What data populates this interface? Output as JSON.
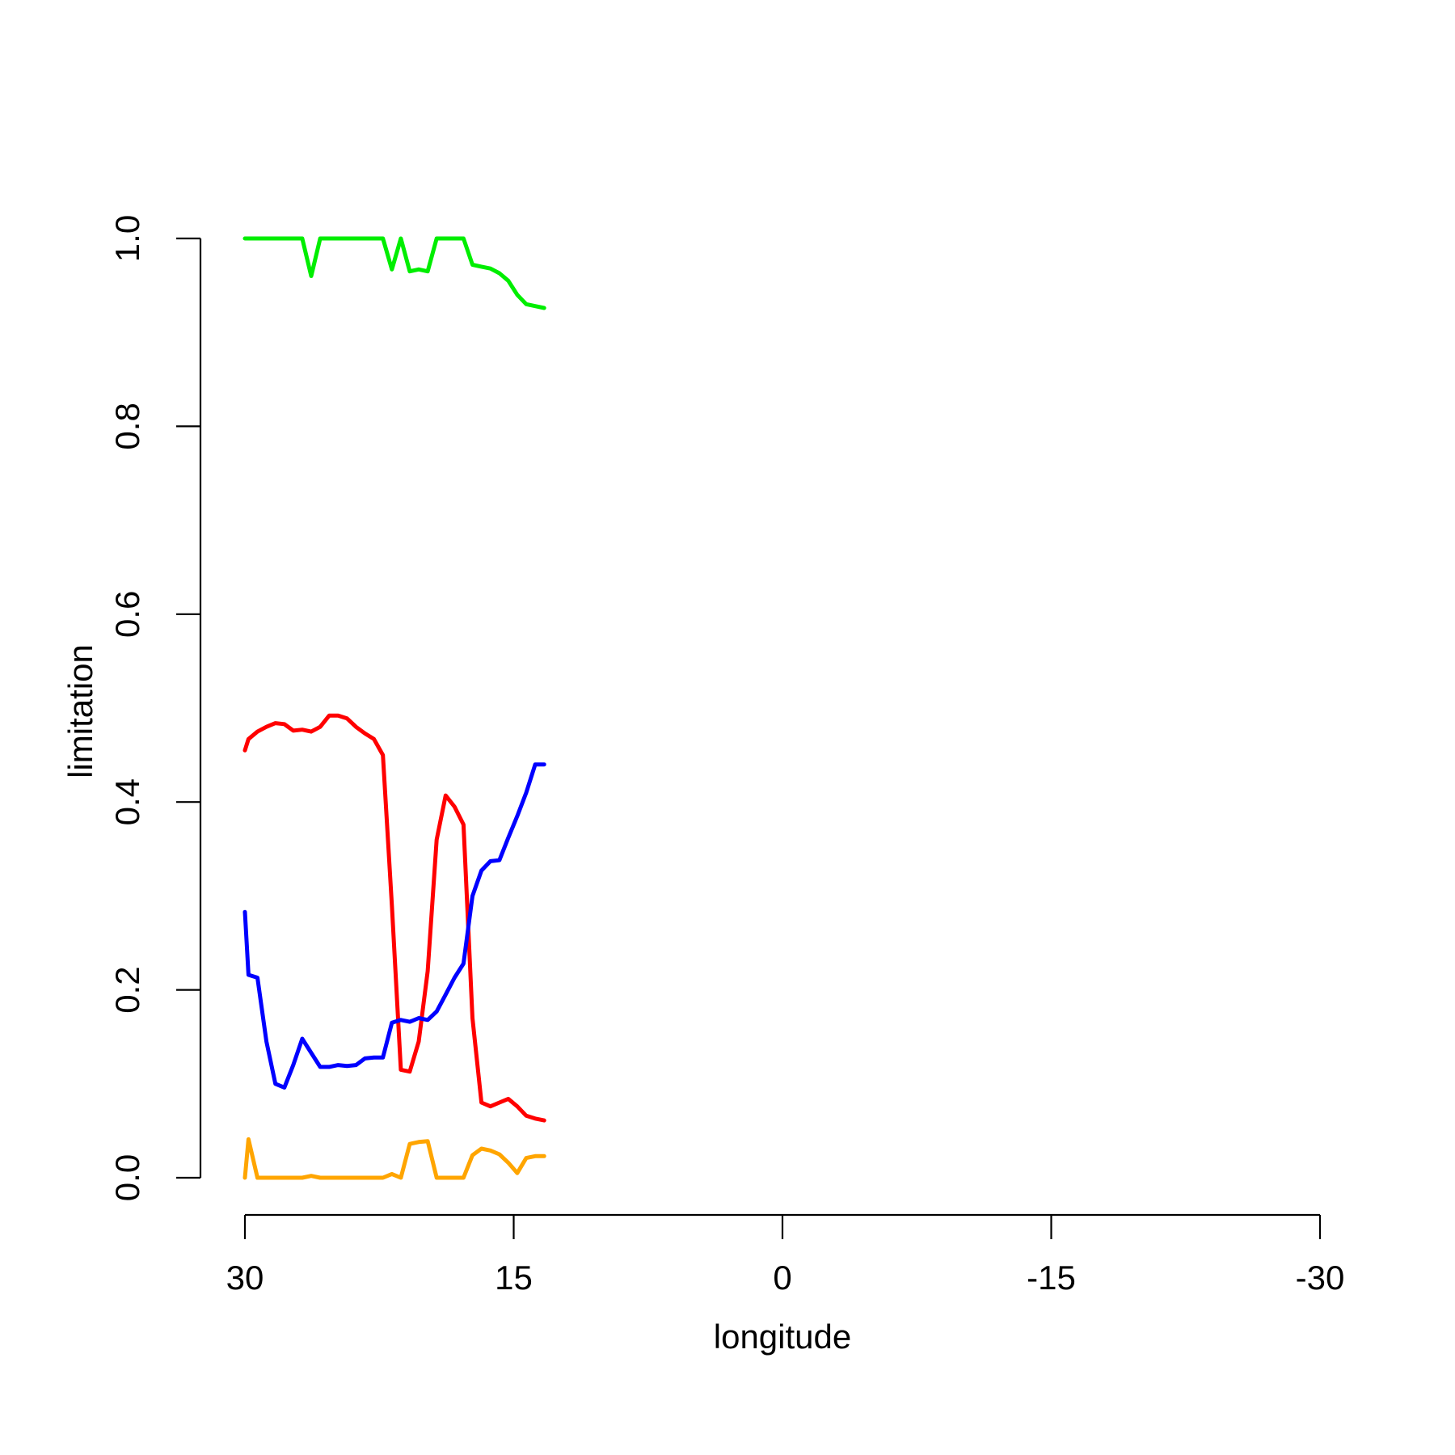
{
  "chart_data": {
    "type": "line",
    "title": "",
    "xlabel": "longitude",
    "ylabel": "limitation",
    "xlim": [
      30,
      -30
    ],
    "ylim": [
      0,
      1
    ],
    "x_ticks": [
      30,
      15,
      0,
      -15,
      -30
    ],
    "x_tick_labels": [
      "30",
      "15",
      "0",
      "-15",
      "-30"
    ],
    "y_ticks": [
      0,
      0.2,
      0.4,
      0.6,
      0.8,
      1
    ],
    "y_tick_labels": [
      "0.0",
      "0.2",
      "0.4",
      "0.6",
      "0.8",
      "1.0"
    ],
    "grid": false,
    "legend": "none",
    "x": [
      30.0,
      29.8,
      29.3,
      28.8,
      28.3,
      27.8,
      27.3,
      26.8,
      26.3,
      25.8,
      25.3,
      24.8,
      24.3,
      23.8,
      23.3,
      22.8,
      22.3,
      21.8,
      21.3,
      20.8,
      20.3,
      19.8,
      19.3,
      18.8,
      18.3,
      17.8,
      17.3,
      16.8,
      16.3,
      15.8,
      15.3,
      14.8,
      14.3,
      13.8,
      13.3
    ],
    "series": [
      {
        "color": "#00ee00",
        "values": [
          1.0,
          1.0,
          1.0,
          1.0,
          1.0,
          1.0,
          1.0,
          1.0,
          0.96,
          1.0,
          1.0,
          1.0,
          1.0,
          1.0,
          1.0,
          1.0,
          1.0,
          0.967,
          1.0,
          0.965,
          0.967,
          0.965,
          1.0,
          1.0,
          1.0,
          1.0,
          0.972,
          0.97,
          0.968,
          0.963,
          0.955,
          0.94,
          0.93,
          0.928,
          0.926
        ]
      },
      {
        "color": "#ff0000",
        "values": [
          0.455,
          0.467,
          0.475,
          0.48,
          0.484,
          0.483,
          0.476,
          0.477,
          0.475,
          0.48,
          0.492,
          0.492,
          0.489,
          0.48,
          0.473,
          0.467,
          0.45,
          0.29,
          0.115,
          0.113,
          0.145,
          0.22,
          0.36,
          0.407,
          0.395,
          0.376,
          0.17,
          0.08,
          0.076,
          0.08,
          0.084,
          0.076,
          0.066,
          0.063,
          0.061
        ]
      },
      {
        "color": "#0000ff",
        "values": [
          0.283,
          0.216,
          0.213,
          0.145,
          0.1,
          0.096,
          0.12,
          0.148,
          0.133,
          0.118,
          0.118,
          0.12,
          0.119,
          0.12,
          0.127,
          0.128,
          0.128,
          0.165,
          0.168,
          0.166,
          0.17,
          0.168,
          0.177,
          0.195,
          0.213,
          0.228,
          0.3,
          0.327,
          0.337,
          0.338,
          0.362,
          0.385,
          0.41,
          0.44,
          0.44
        ]
      },
      {
        "color": "#ffa500",
        "values": [
          0.0,
          0.041,
          0.0,
          0.0,
          0.0,
          0.0,
          0.0,
          0.0,
          0.002,
          0.0,
          0.0,
          0.0,
          0.0,
          0.0,
          0.0,
          0.0,
          0.0,
          0.004,
          0.0,
          0.036,
          0.038,
          0.039,
          0.0,
          0.0,
          0.0,
          0.0,
          0.024,
          0.031,
          0.029,
          0.025,
          0.016,
          0.005,
          0.021,
          0.023,
          0.023
        ]
      }
    ]
  }
}
